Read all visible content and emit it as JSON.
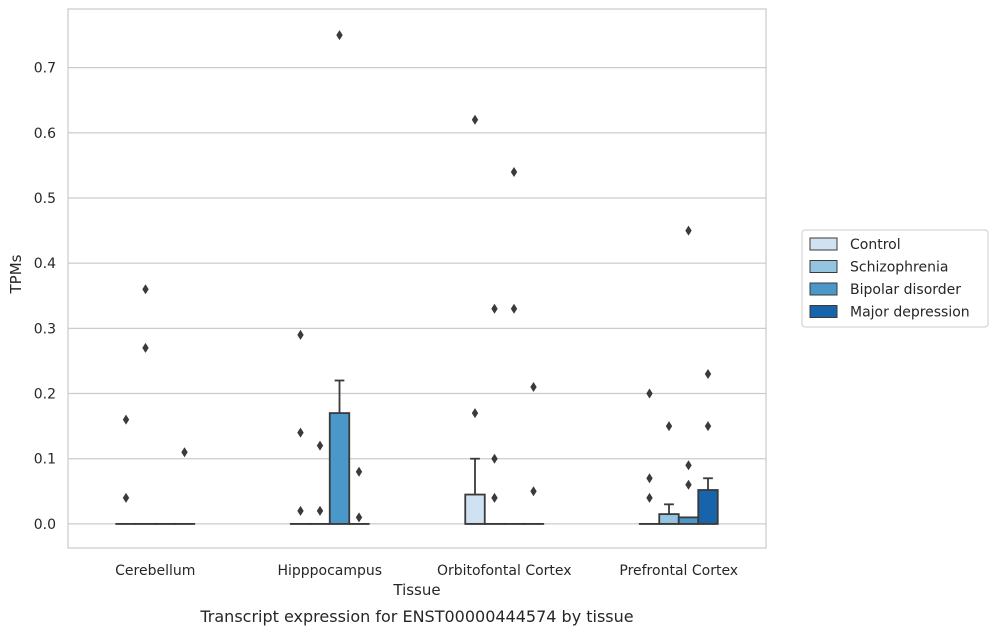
{
  "caption": "Transcript expression for ENST00000444574 by tissue",
  "chart_data": {
    "type": "box",
    "title": "",
    "xlabel": "Tissue",
    "ylabel": "TPMs",
    "ylim": [
      -0.037,
      0.79
    ],
    "yticks": [
      0.0,
      0.1,
      0.2,
      0.3,
      0.4,
      0.5,
      0.6,
      0.7
    ],
    "ytick_labels": [
      "0.0",
      "0.1",
      "0.2",
      "0.3",
      "0.4",
      "0.5",
      "0.6",
      "0.7"
    ],
    "grid": "horizontal",
    "legend_position": "right",
    "categories": [
      "Cerebellum",
      "Hipppocampus",
      "Orbitofontal Cortex",
      "Prefrontal Cortex"
    ],
    "series": [
      {
        "name": "Control",
        "color": "#d0e1f2",
        "boxes": [
          {
            "q1": 0,
            "median": 0,
            "q3": 0,
            "whislo": 0,
            "whishi": 0,
            "fliers": [
              0.16,
              0.04
            ]
          },
          {
            "q1": 0,
            "median": 0,
            "q3": 0,
            "whislo": 0,
            "whishi": 0,
            "fliers": [
              0.29,
              0.14,
              0.02
            ]
          },
          {
            "q1": 0,
            "median": 0,
            "q3": 0.045,
            "whislo": 0,
            "whishi": 0.1,
            "fliers": [
              0.62,
              0.17
            ]
          },
          {
            "q1": 0,
            "median": 0,
            "q3": 0,
            "whislo": 0,
            "whishi": 0,
            "fliers": [
              0.2,
              0.07,
              0.04
            ]
          }
        ]
      },
      {
        "name": "Schizophrenia",
        "color": "#94c4df",
        "boxes": [
          {
            "q1": 0,
            "median": 0,
            "q3": 0,
            "whislo": 0,
            "whishi": 0,
            "fliers": [
              0.36,
              0.27
            ]
          },
          {
            "q1": 0,
            "median": 0,
            "q3": 0,
            "whislo": 0,
            "whishi": 0,
            "fliers": [
              0.12,
              0.02
            ]
          },
          {
            "q1": 0,
            "median": 0,
            "q3": 0,
            "whislo": 0,
            "whishi": 0,
            "fliers": [
              0.33,
              0.1,
              0.04
            ]
          },
          {
            "q1": 0,
            "median": 0,
            "q3": 0.015,
            "whislo": 0,
            "whishi": 0.03,
            "fliers": [
              0.15
            ]
          }
        ]
      },
      {
        "name": "Bipolar disorder",
        "color": "#4a98c9",
        "boxes": [
          {
            "q1": 0,
            "median": 0,
            "q3": 0,
            "whislo": 0,
            "whishi": 0,
            "fliers": []
          },
          {
            "q1": 0,
            "median": 0,
            "q3": 0.17,
            "whislo": 0,
            "whishi": 0.22,
            "fliers": [
              0.75
            ]
          },
          {
            "q1": 0,
            "median": 0,
            "q3": 0,
            "whislo": 0,
            "whishi": 0,
            "fliers": [
              0.54,
              0.33
            ]
          },
          {
            "q1": 0,
            "median": 0,
            "q3": 0.01,
            "whislo": 0,
            "whishi": 0.01,
            "fliers": [
              0.45,
              0.09,
              0.06
            ]
          }
        ]
      },
      {
        "name": "Major depression",
        "color": "#1764ab",
        "boxes": [
          {
            "q1": 0,
            "median": 0,
            "q3": 0,
            "whislo": 0,
            "whishi": 0,
            "fliers": [
              0.11
            ]
          },
          {
            "q1": 0,
            "median": 0,
            "q3": 0,
            "whislo": 0,
            "whishi": 0,
            "fliers": [
              0.08,
              0.01
            ]
          },
          {
            "q1": 0,
            "median": 0,
            "q3": 0,
            "whislo": 0,
            "whishi": 0,
            "fliers": [
              0.21,
              0.05
            ]
          },
          {
            "q1": 0,
            "median": 0,
            "q3": 0.052,
            "whislo": 0,
            "whishi": 0.07,
            "fliers": [
              0.23,
              0.15
            ]
          }
        ]
      }
    ]
  }
}
